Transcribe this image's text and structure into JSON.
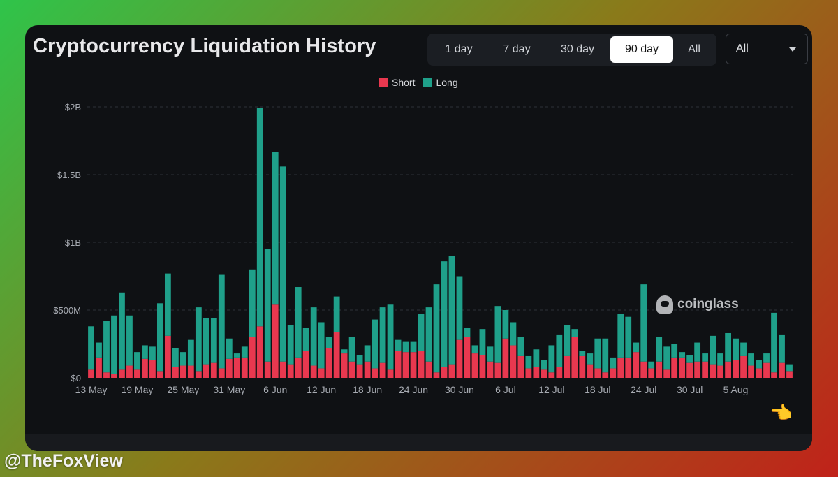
{
  "header": {
    "title": "Cryptocurrency Liquidation History",
    "ranges": [
      "1 day",
      "7 day",
      "30 day",
      "90 day",
      "All"
    ],
    "active_range": "90 day",
    "select_value": "All"
  },
  "watermark": "coinglass",
  "handle": "@TheFoxView",
  "colors": {
    "short": "#e8384f",
    "long": "#1fa08a",
    "grid": "#2e3138",
    "axis_text": "#a7abb2"
  },
  "chart_data": {
    "type": "bar",
    "stacked": true,
    "legend": [
      "Short",
      "Long"
    ],
    "legend_position": "top-center",
    "y_ticks": [
      "$0",
      "$500M",
      "$1B",
      "$1.5B",
      "$2B"
    ],
    "ylim": [
      0,
      2000
    ],
    "unit": "millions USD",
    "grid": true,
    "x_tick_labels": [
      "13 May",
      "19 May",
      "25 May",
      "31 May",
      "6 Jun",
      "12 Jun",
      "18 Jun",
      "24 Jun",
      "30 Jun",
      "6 Jul",
      "12 Jul",
      "18 Jul",
      "24 Jul",
      "30 Jul",
      "5 Aug"
    ],
    "x_tick_every": 6,
    "series": [
      {
        "name": "Short",
        "values": [
          60,
          150,
          40,
          30,
          60,
          90,
          60,
          140,
          130,
          50,
          310,
          80,
          90,
          90,
          50,
          100,
          110,
          70,
          140,
          150,
          150,
          300,
          380,
          120,
          540,
          120,
          100,
          150,
          200,
          90,
          70,
          220,
          340,
          180,
          120,
          100,
          120,
          70,
          110,
          60,
          200,
          190,
          190,
          200,
          120,
          40,
          80,
          100,
          280,
          300,
          180,
          170,
          120,
          110,
          290,
          240,
          160,
          70,
          80,
          60,
          40,
          80,
          160,
          300,
          160,
          100,
          70,
          40,
          70,
          150,
          150,
          190,
          120,
          70,
          120,
          60,
          150,
          150,
          110,
          120,
          120,
          100,
          90,
          120,
          130,
          160,
          90,
          70,
          110,
          40,
          110,
          50
        ]
      },
      {
        "name": "Long",
        "values": [
          320,
          110,
          380,
          430,
          570,
          370,
          130,
          100,
          100,
          500,
          460,
          140,
          100,
          190,
          470,
          340,
          330,
          690,
          150,
          30,
          80,
          500,
          1610,
          830,
          1130,
          1440,
          290,
          520,
          170,
          430,
          340,
          80,
          260,
          30,
          180,
          70,
          120,
          360,
          410,
          480,
          80,
          80,
          80,
          270,
          400,
          650,
          780,
          800,
          470,
          70,
          60,
          190,
          110,
          420,
          210,
          170,
          140,
          90,
          130,
          70,
          200,
          240,
          230,
          60,
          40,
          80,
          220,
          250,
          80,
          320,
          300,
          70,
          570,
          50,
          180,
          170,
          100,
          40,
          60,
          140,
          60,
          210,
          90,
          210,
          160,
          100,
          90,
          60,
          70,
          440,
          210,
          50
        ]
      }
    ]
  }
}
